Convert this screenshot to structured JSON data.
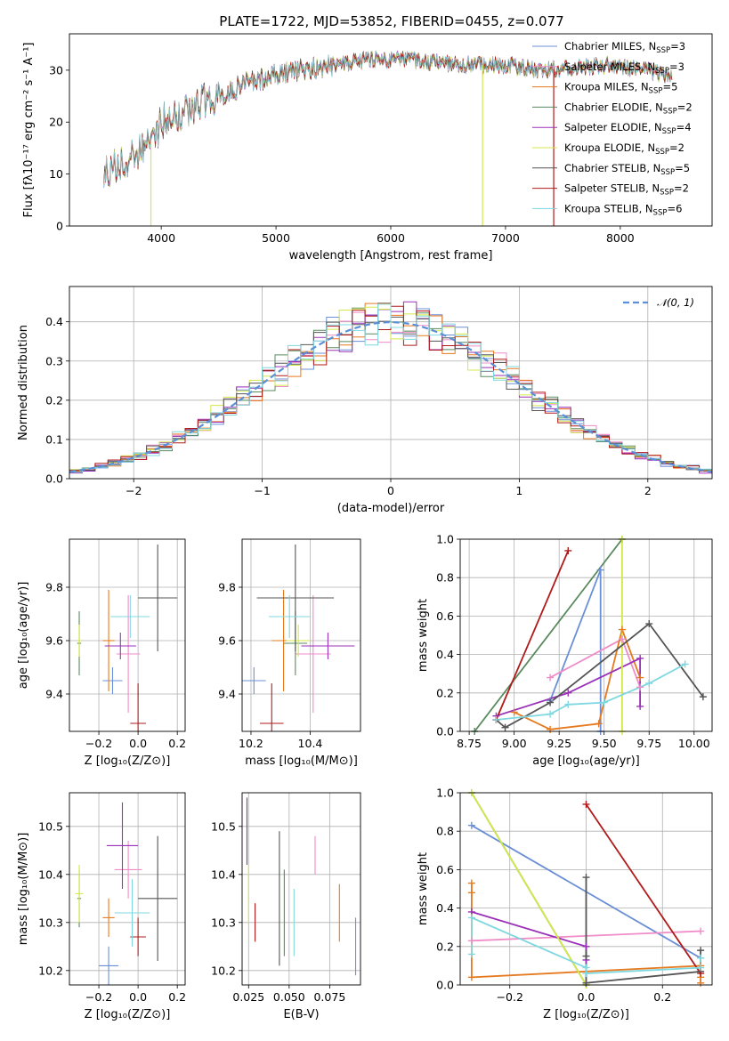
{
  "figure_title": "PLATE=1722, MJD=53852, FIBERID=0455, z=0.077",
  "colors": {
    "Chabrier MILES": "#6b8fd6",
    "Salpeter MILES": "#f08cc8",
    "Kroupa MILES": "#e67a1e",
    "Chabrier ELODIE": "#5a8a5e",
    "Salpeter ELODIE": "#9b30b8",
    "Kroupa ELODIE": "#d4e84a",
    "Chabrier STELIB": "#555555",
    "Salpeter STELIB": "#b01a1a",
    "Kroupa STELIB": "#7fd8e0",
    "normal": "#5b8fd6",
    "grid": "#b0b0b0"
  },
  "chart_data": [
    {
      "id": "spectrum",
      "type": "line",
      "title": "PLATE=1722, MJD=53852, FIBERID=0455, z=0.077",
      "xlabel": "wavelength [Angstrom, rest frame]",
      "ylabel": "Flux [fλ10⁻¹⁷ erg cm⁻² s⁻¹ A⁻¹]",
      "xlim": [
        3200,
        8800
      ],
      "ylim": [
        0,
        37
      ],
      "xticks": [
        "4000",
        "5000",
        "6000",
        "7000",
        "8000"
      ],
      "yticks": [
        "0",
        "10",
        "20",
        "30"
      ],
      "grid": false,
      "legend_position": "right",
      "legend": [
        {
          "model": "Chabrier MILES",
          "label": "Chabrier MILES, N",
          "sub": "SSP",
          "suffix": "=3"
        },
        {
          "model": "Salpeter MILES",
          "label": "Salpeter MILES, N",
          "sub": "SSP",
          "suffix": "=3"
        },
        {
          "model": "Kroupa MILES",
          "label": "Kroupa MILES, N",
          "sub": "SSP",
          "suffix": "=5"
        },
        {
          "model": "Chabrier ELODIE",
          "label": "Chabrier ELODIE, N",
          "sub": "SSP",
          "suffix": "=2"
        },
        {
          "model": "Salpeter ELODIE",
          "label": "Salpeter ELODIE, N",
          "sub": "SSP",
          "suffix": "=4"
        },
        {
          "model": "Kroupa ELODIE",
          "label": "Kroupa ELODIE, N",
          "sub": "SSP",
          "suffix": "=2"
        },
        {
          "model": "Chabrier STELIB",
          "label": "Chabrier STELIB, N",
          "sub": "SSP",
          "suffix": "=5"
        },
        {
          "model": "Salpeter STELIB",
          "label": "Salpeter STELIB, N",
          "sub": "SSP",
          "suffix": "=2"
        },
        {
          "model": "Kroupa STELIB",
          "label": "Kroupa STELIB, N",
          "sub": "SSP",
          "suffix": "=6"
        }
      ],
      "continuum": {
        "wavelength": [
          3500,
          3650,
          3800,
          3950,
          4000,
          4100,
          4300,
          4500,
          4800,
          5000,
          5200,
          5500,
          5800,
          6100,
          6400,
          6700,
          7000,
          7300,
          7600,
          7900,
          8200,
          8450
        ],
        "flux": [
          11,
          12,
          14,
          17,
          20,
          21,
          23,
          25,
          28,
          29,
          30,
          31,
          32,
          32,
          31.5,
          31,
          31,
          30,
          30.5,
          31,
          30,
          29
        ]
      },
      "spikes": [
        {
          "model": "Kroupa ELODIE",
          "wavelength": 3910,
          "flux": 0
        },
        {
          "model": "Kroupa ELODIE",
          "wavelength": 6800,
          "flux": 0
        },
        {
          "model": "Salpeter STELIB",
          "wavelength": 7420,
          "flux": 0
        }
      ]
    },
    {
      "id": "residuals",
      "type": "step",
      "xlabel": "(data-model)/error",
      "ylabel": "Normed distribution",
      "xlim": [
        -2.5,
        2.5
      ],
      "ylim": [
        0,
        0.49
      ],
      "xticks": [
        "−2",
        "−1",
        "0",
        "1",
        "2"
      ],
      "yticks": [
        "0.0",
        "0.1",
        "0.2",
        "0.3",
        "0.4"
      ],
      "grid": true,
      "legend_position": "top-right",
      "reference_curve": {
        "label": "𝒩(0, 1)",
        "mean": 0,
        "sigma": 1
      },
      "bin_width": 0.1
    },
    {
      "id": "age-vs-Z",
      "type": "errorbar",
      "xlabel": "Z [log₁₀(Z/Z⊙)]",
      "ylabel": "age  [log₁₀(age/yr)]",
      "xlim": [
        -0.35,
        0.24
      ],
      "ylim": [
        9.26,
        9.98
      ],
      "xticks": [
        "−0.2",
        "0.0",
        "0.2"
      ],
      "yticks": [
        "9.4",
        "9.6",
        "9.8"
      ],
      "grid": true,
      "points": [
        {
          "model": "Chabrier MILES",
          "x": -0.13,
          "xerr": 0.05,
          "y": 9.45,
          "yerr": 0.05
        },
        {
          "model": "Salpeter MILES",
          "x": -0.05,
          "xerr": 0.06,
          "y": 9.55,
          "yerr": 0.22
        },
        {
          "model": "Kroupa MILES",
          "x": -0.15,
          "xerr": 0.03,
          "y": 9.6,
          "yerr": 0.19
        },
        {
          "model": "Chabrier ELODIE",
          "x": -0.3,
          "xerr": 0.01,
          "y": 9.59,
          "yerr": 0.12
        },
        {
          "model": "Salpeter ELODIE",
          "x": -0.09,
          "xerr": 0.08,
          "y": 9.58,
          "yerr": 0.05
        },
        {
          "model": "Kroupa ELODIE",
          "x": -0.3,
          "xerr": 0.01,
          "y": 9.6,
          "yerr": 0.06
        },
        {
          "model": "Chabrier STELIB",
          "x": 0.1,
          "xerr": 0.1,
          "y": 9.76,
          "yerr": 0.2
        },
        {
          "model": "Salpeter STELIB",
          "x": 0.0,
          "xerr": 0.04,
          "y": 9.29,
          "yerr": 0.15
        },
        {
          "model": "Kroupa STELIB",
          "x": -0.04,
          "xerr": 0.1,
          "y": 9.69,
          "yerr": 0.08
        }
      ]
    },
    {
      "id": "age-vs-mass",
      "type": "errorbar",
      "xlabel": "mass [log₁₀(M/M⊙)]",
      "ylabel": "",
      "xlim": [
        10.17,
        10.57
      ],
      "ylim": [
        9.26,
        9.98
      ],
      "xticks": [
        "10.2",
        "10.4"
      ],
      "yticks": [
        "9.4",
        "9.6",
        "9.8"
      ],
      "grid": true,
      "points": [
        {
          "model": "Chabrier MILES",
          "x": 10.21,
          "xerr": 0.04,
          "y": 9.45,
          "yerr": 0.05
        },
        {
          "model": "Salpeter MILES",
          "x": 10.41,
          "xerr": 0.06,
          "y": 9.55,
          "yerr": 0.22
        },
        {
          "model": "Kroupa MILES",
          "x": 10.31,
          "xerr": 0.04,
          "y": 9.6,
          "yerr": 0.19
        },
        {
          "model": "Chabrier ELODIE",
          "x": 10.35,
          "xerr": 0.04,
          "y": 9.59,
          "yerr": 0.12
        },
        {
          "model": "Salpeter ELODIE",
          "x": 10.46,
          "xerr": 0.09,
          "y": 9.58,
          "yerr": 0.05
        },
        {
          "model": "Kroupa ELODIE",
          "x": 10.36,
          "xerr": 0.04,
          "y": 9.6,
          "yerr": 0.06
        },
        {
          "model": "Chabrier STELIB",
          "x": 10.35,
          "xerr": 0.13,
          "y": 9.76,
          "yerr": 0.2
        },
        {
          "model": "Salpeter STELIB",
          "x": 10.27,
          "xerr": 0.04,
          "y": 9.29,
          "yerr": 0.15
        },
        {
          "model": "Kroupa STELIB",
          "x": 10.33,
          "xerr": 0.07,
          "y": 9.69,
          "yerr": 0.08
        }
      ]
    },
    {
      "id": "mass-weight-vs-age",
      "type": "line",
      "xlabel": "age  [log₁₀(age/yr)]",
      "ylabel": "mass weight",
      "xlim": [
        8.7,
        10.1
      ],
      "ylim": [
        0,
        1
      ],
      "xticks": [
        "8.75",
        "9.00",
        "9.25",
        "9.50",
        "9.75",
        "10.00"
      ],
      "yticks": [
        "0.0",
        "0.2",
        "0.4",
        "0.6",
        "0.8",
        "1.0"
      ],
      "grid": true,
      "series": [
        {
          "model": "Chabrier MILES",
          "x": [
            9.2,
            9.48,
            9.48
          ],
          "y": [
            0.16,
            0.84,
            0.0
          ]
        },
        {
          "model": "Salpeter MILES",
          "x": [
            9.2,
            9.6,
            9.7
          ],
          "y": [
            0.28,
            0.48,
            0.23
          ]
        },
        {
          "model": "Kroupa MILES",
          "x": [
            9.0,
            9.2,
            9.47,
            9.6,
            9.7
          ],
          "y": [
            0.1,
            0.01,
            0.04,
            0.53,
            0.28
          ]
        },
        {
          "model": "Chabrier ELODIE",
          "x": [
            8.78,
            9.6
          ],
          "y": [
            0.0,
            1.0
          ]
        },
        {
          "model": "Salpeter ELODIE",
          "x": [
            8.9,
            9.3,
            9.7,
            9.7
          ],
          "y": [
            0.08,
            0.2,
            0.38,
            0.13
          ]
        },
        {
          "model": "Kroupa ELODIE",
          "x": [
            9.6,
            9.6
          ],
          "y": [
            0.0,
            1.0
          ]
        },
        {
          "model": "Chabrier STELIB",
          "x": [
            8.9,
            8.95,
            9.2,
            9.75,
            10.05
          ],
          "y": [
            0.06,
            0.02,
            0.15,
            0.56,
            0.18
          ]
        },
        {
          "model": "Salpeter STELIB",
          "x": [
            8.9,
            9.3
          ],
          "y": [
            0.06,
            0.94
          ]
        },
        {
          "model": "Kroupa STELIB",
          "x": [
            8.9,
            9.2,
            9.3,
            9.5,
            9.75,
            9.95
          ],
          "y": [
            0.06,
            0.09,
            0.14,
            0.15,
            0.25,
            0.35
          ]
        }
      ]
    },
    {
      "id": "mass-vs-Z",
      "type": "errorbar",
      "xlabel": "Z [log₁₀(Z/Z⊙)]",
      "ylabel": "mass [log₁₀(M/M⊙)]",
      "xlim": [
        -0.35,
        0.24
      ],
      "ylim": [
        10.17,
        10.57
      ],
      "xticks": [
        "−0.2",
        "0.0",
        "0.2"
      ],
      "yticks": [
        "10.2",
        "10.3",
        "10.4",
        "10.5"
      ],
      "grid": true,
      "points": [
        {
          "model": "Chabrier MILES",
          "x": -0.15,
          "xerr": 0.05,
          "y": 10.21,
          "yerr": 0.04
        },
        {
          "model": "Salpeter MILES",
          "x": -0.05,
          "xerr": 0.07,
          "y": 10.41,
          "yerr": 0.06
        },
        {
          "model": "Kroupa MILES",
          "x": -0.15,
          "xerr": 0.03,
          "y": 10.31,
          "yerr": 0.04
        },
        {
          "model": "Chabrier ELODIE",
          "x": -0.3,
          "xerr": 0.01,
          "y": 10.35,
          "yerr": 0.06
        },
        {
          "model": "Salpeter ELODIE",
          "x": -0.08,
          "xerr": 0.08,
          "y": 10.46,
          "yerr": 0.09
        },
        {
          "model": "Kroupa ELODIE",
          "x": -0.3,
          "xerr": 0.02,
          "y": 10.36,
          "yerr": 0.06
        },
        {
          "model": "Chabrier STELIB",
          "x": 0.1,
          "xerr": 0.1,
          "y": 10.35,
          "yerr": 0.13
        },
        {
          "model": "Salpeter STELIB",
          "x": 0.0,
          "xerr": 0.04,
          "y": 10.27,
          "yerr": 0.04
        },
        {
          "model": "Kroupa STELIB",
          "x": -0.03,
          "xerr": 0.09,
          "y": 10.32,
          "yerr": 0.07
        }
      ]
    },
    {
      "id": "mass-vs-ebv",
      "type": "errorbar",
      "xlabel": "E(B-V)",
      "ylabel": "",
      "xlim": [
        0.021,
        0.094
      ],
      "ylim": [
        10.17,
        10.57
      ],
      "xticks": [
        "0.025",
        "0.050",
        "0.075"
      ],
      "yticks": [
        "10.2",
        "10.3",
        "10.4",
        "10.5"
      ],
      "grid": true,
      "points": [
        {
          "model": "Chabrier MILES",
          "x": 0.091,
          "y": 10.25,
          "yerr": 0.06
        },
        {
          "model": "Salpeter MILES",
          "x": 0.066,
          "y": 10.44,
          "yerr": 0.04
        },
        {
          "model": "Kroupa MILES",
          "x": 0.081,
          "y": 10.32,
          "yerr": 0.06
        },
        {
          "model": "Chabrier ELODIE",
          "x": 0.047,
          "y": 10.32,
          "yerr": 0.09
        },
        {
          "model": "Salpeter ELODIE",
          "x": 0.024,
          "y": 10.49,
          "yerr": 0.07
        },
        {
          "model": "Kroupa ELODIE",
          "x": 0.025,
          "y": 10.36,
          "yerr": 0.06
        },
        {
          "model": "Chabrier STELIB",
          "x": 0.044,
          "y": 10.35,
          "yerr": 0.14
        },
        {
          "model": "Salpeter STELIB",
          "x": 0.029,
          "y": 10.3,
          "yerr": 0.04
        },
        {
          "model": "Kroupa STELIB",
          "x": 0.053,
          "y": 10.3,
          "yerr": 0.07
        }
      ]
    },
    {
      "id": "mass-weight-vs-Z",
      "type": "line",
      "xlabel": "Z [log₁₀(Z/Z⊙)]",
      "ylabel": "mass weight",
      "xlim": [
        -0.33,
        0.33
      ],
      "ylim": [
        0,
        1
      ],
      "xticks": [
        "−0.2",
        "0.0",
        "0.2"
      ],
      "yticks": [
        "0.0",
        "0.2",
        "0.4",
        "0.6",
        "0.8",
        "1.0"
      ],
      "grid": true,
      "series": [
        {
          "model": "Chabrier MILES",
          "x": [
            -0.3,
            0.3
          ],
          "y": [
            0.83,
            0.14
          ]
        },
        {
          "model": "Salpeter MILES",
          "x": [
            -0.3,
            0.3
          ],
          "y": [
            0.23,
            0.28
          ]
        },
        {
          "model": "Kroupa MILES",
          "x": [
            -0.3,
            -0.3,
            -0.3,
            0.3,
            0.3,
            0.3
          ],
          "y": [
            0.53,
            0.48,
            0.04,
            0.1,
            0.04,
            0.01
          ]
        },
        {
          "model": "Chabrier ELODIE",
          "x": [
            -0.3,
            0.0
          ],
          "y": [
            1.0,
            0.0
          ]
        },
        {
          "model": "Salpeter ELODIE",
          "x": [
            -0.3,
            0.0,
            0.0
          ],
          "y": [
            0.38,
            0.2,
            0.13
          ]
        },
        {
          "model": "Kroupa ELODIE",
          "x": [
            -0.3,
            0.0
          ],
          "y": [
            1.0,
            0.0
          ]
        },
        {
          "model": "Chabrier STELIB",
          "x": [
            0.0,
            0.0,
            0.0,
            0.3,
            0.3
          ],
          "y": [
            0.56,
            0.15,
            0.01,
            0.07,
            0.18
          ]
        },
        {
          "model": "Salpeter STELIB",
          "x": [
            0.0,
            0.3
          ],
          "y": [
            0.94,
            0.06
          ]
        },
        {
          "model": "Kroupa STELIB",
          "x": [
            -0.3,
            -0.3,
            0.0,
            0.0,
            0.3,
            0.3
          ],
          "y": [
            0.16,
            0.35,
            0.09,
            0.06,
            0.09,
            0.14
          ]
        }
      ]
    }
  ]
}
